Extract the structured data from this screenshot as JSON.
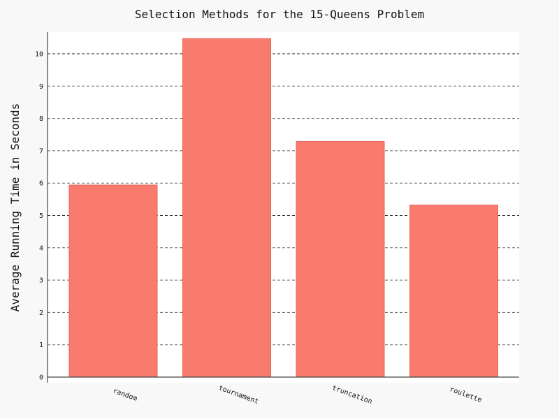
{
  "chart_data": {
    "type": "bar",
    "title": "Selection Methods for the 15-Queens Problem",
    "xlabel": "",
    "ylabel": "Average Running Time in Seconds",
    "categories": [
      "random",
      "tournament",
      "truncation",
      "roulette"
    ],
    "values": [
      5.94,
      10.47,
      7.29,
      5.32
    ],
    "ylim": [
      0,
      10.7
    ],
    "yticks": [
      "0",
      "1",
      "2",
      "3",
      "4",
      "5",
      "6",
      "7",
      "8",
      "9",
      "10"
    ],
    "grid": true,
    "bar_color": "#f87b6e",
    "bar_edge_color": "#e8645a",
    "background": "#ffffff",
    "page_background": "#f8f8f8"
  }
}
